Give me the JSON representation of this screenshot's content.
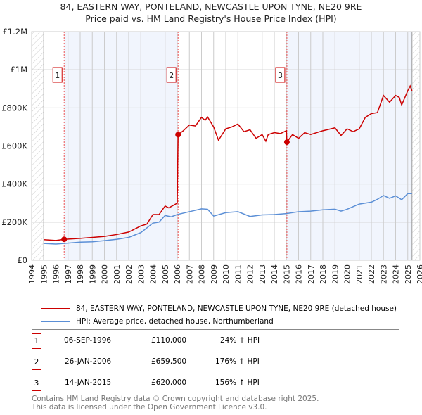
{
  "chart_data": {
    "type": "line",
    "title": "84, EASTERN WAY, PONTELAND, NEWCASTLE UPON TYNE, NE20 9RE",
    "subtitle": "Price paid vs. HM Land Registry's House Price Index (HPI)",
    "xlim": [
      1994,
      2026
    ],
    "ylim": [
      0,
      1200000
    ],
    "x_ticks": [
      "1994",
      "1995",
      "1996",
      "1997",
      "1998",
      "1999",
      "2000",
      "2001",
      "2002",
      "2003",
      "2004",
      "2005",
      "2006",
      "2007",
      "2008",
      "2009",
      "2010",
      "2011",
      "2012",
      "2013",
      "2014",
      "2015",
      "2016",
      "2017",
      "2018",
      "2019",
      "2020",
      "2021",
      "2022",
      "2023",
      "2024",
      "2025",
      "2026"
    ],
    "y_ticks": [
      {
        "v": 0,
        "l": "£0"
      },
      {
        "v": 200000,
        "l": "£200K"
      },
      {
        "v": 400000,
        "l": "£400K"
      },
      {
        "v": 600000,
        "l": "£600K"
      },
      {
        "v": 800000,
        "l": "£800K"
      },
      {
        "v": 1000000,
        "l": "£1M"
      },
      {
        "v": 1200000,
        "l": "£1.2M"
      }
    ],
    "grid": true,
    "series": [
      {
        "name": "84, EASTERN WAY, PONTELAND, NEWCASTLE UPON TYNE, NE20 9RE (detached house)",
        "color": "#cc0000",
        "x": [
          1995,
          1996,
          1996.68,
          1998,
          2000,
          2001,
          2002,
          2003,
          2003.5,
          2004,
          2004.5,
          2005,
          2005.3,
          2006.0,
          2006.07,
          2006.5,
          2007,
          2007.5,
          2008,
          2008.3,
          2008.5,
          2009,
          2009.4,
          2010,
          2010.5,
          2011,
          2011.5,
          2012,
          2012.5,
          2013,
          2013.3,
          2013.5,
          2014,
          2014.5,
          2015,
          2015.04,
          2015.5,
          2016,
          2016.5,
          2017,
          2018,
          2019,
          2019.5,
          2020,
          2020.5,
          2021,
          2021.5,
          2022,
          2022.5,
          2023,
          2023.5,
          2024,
          2024.3,
          2024.5,
          2025,
          2025.2,
          2025.35
        ],
        "y": [
          108000,
          104000,
          110000,
          115000,
          125000,
          135000,
          148000,
          180000,
          190000,
          240000,
          240000,
          285000,
          275000,
          300000,
          659500,
          680000,
          710000,
          705000,
          750000,
          735000,
          752000,
          700000,
          630000,
          690000,
          700000,
          715000,
          675000,
          685000,
          640000,
          660000,
          625000,
          660000,
          670000,
          665000,
          680000,
          620000,
          660000,
          640000,
          670000,
          660000,
          680000,
          695000,
          655000,
          690000,
          675000,
          690000,
          750000,
          770000,
          775000,
          865000,
          830000,
          865000,
          855000,
          815000,
          890000,
          915000,
          890000
        ]
      },
      {
        "name": "HPI: Average price, detached house, Northumberland",
        "color": "#5b8fd6",
        "x": [
          1995,
          1996,
          1997,
          1998,
          1999,
          2000,
          2001,
          2002,
          2003,
          2004,
          2004.5,
          2005,
          2005.5,
          2006,
          2007,
          2008,
          2008.5,
          2009,
          2010,
          2011,
          2012,
          2013,
          2014,
          2015,
          2016,
          2017,
          2018,
          2019,
          2019.5,
          2020,
          2021,
          2022,
          2022.5,
          2023,
          2023.5,
          2024,
          2024.5,
          2025,
          2025.35
        ],
        "y": [
          88000,
          85000,
          90000,
          95000,
          97000,
          103000,
          110000,
          120000,
          145000,
          195000,
          200000,
          235000,
          228000,
          240000,
          255000,
          270000,
          268000,
          232000,
          250000,
          255000,
          230000,
          238000,
          240000,
          245000,
          255000,
          258000,
          265000,
          268000,
          258000,
          268000,
          295000,
          305000,
          320000,
          340000,
          325000,
          338000,
          318000,
          350000,
          350000
        ]
      }
    ],
    "sales": [
      {
        "n": "1",
        "x": 1996.68,
        "y": 110000
      },
      {
        "n": "2",
        "x": 2006.07,
        "y": 659500
      },
      {
        "n": "3",
        "x": 2015.04,
        "y": 620000
      }
    ],
    "data_end": 2025.35
  },
  "legend": {
    "red": "84, EASTERN WAY, PONTELAND, NEWCASTLE UPON TYNE, NE20 9RE (detached house)",
    "blue": "HPI: Average price, detached house, Northumberland"
  },
  "transactions": [
    {
      "n": "1",
      "date": "06-SEP-1996",
      "price": "£110,000",
      "hpi": "24% ↑ HPI"
    },
    {
      "n": "2",
      "date": "26-JAN-2006",
      "price": "£659,500",
      "hpi": "176% ↑ HPI"
    },
    {
      "n": "3",
      "date": "14-JAN-2015",
      "price": "£620,000",
      "hpi": "156% ↑ HPI"
    }
  ],
  "footer": {
    "line1": "Contains HM Land Registry data © Crown copyright and database right 2025.",
    "line2": "This data is licensed under the Open Government Licence v3.0."
  }
}
